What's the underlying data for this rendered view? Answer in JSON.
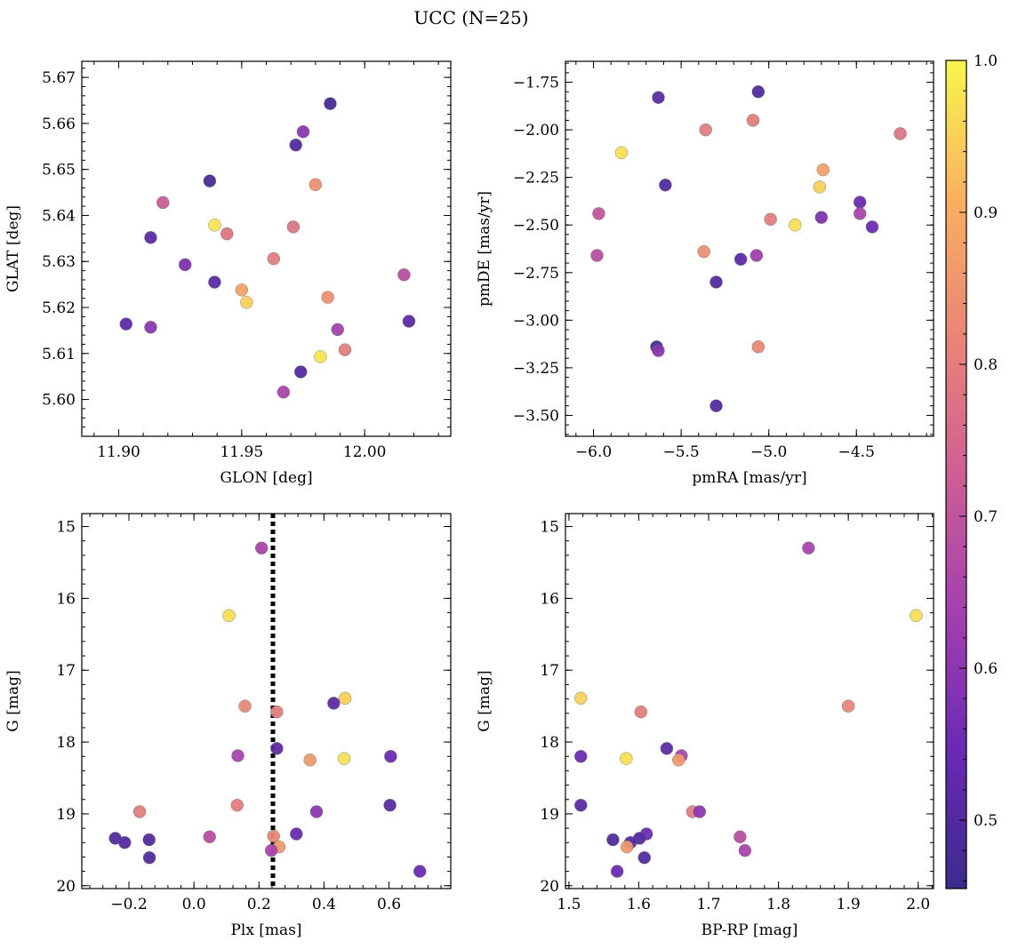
{
  "figure_title": "UCC (N=25)",
  "colorbar": {
    "range": [
      0.455,
      1.0
    ],
    "ticks": [
      0.5,
      0.6,
      0.7,
      0.8,
      0.9,
      1.0
    ],
    "tick_labels": [
      "0.5",
      "0.6",
      "0.7",
      "0.8",
      "0.9",
      "1.0"
    ],
    "colormap": "plasma",
    "colormap_stops": [
      "#3b2b8e",
      "#6a2ab5",
      "#a53fb0",
      "#cd5f94",
      "#e98577",
      "#fbb05f",
      "#f7f74c"
    ]
  },
  "chart_data": [
    {
      "id": "glon-glat",
      "type": "scatter",
      "xlabel": "GLON [deg]",
      "ylabel": "GLAT [deg]",
      "xlim": [
        11.885,
        12.035
      ],
      "ylim": [
        5.592,
        5.6735
      ],
      "xticks": [
        11.9,
        11.95,
        12.0
      ],
      "xtick_labels": [
        "11.90",
        "11.95",
        "12.00"
      ],
      "yticks": [
        5.6,
        5.61,
        5.62,
        5.63,
        5.64,
        5.65,
        5.66,
        5.67
      ],
      "ytick_labels": [
        "5.60",
        "5.61",
        "5.62",
        "5.63",
        "5.64",
        "5.65",
        "5.66",
        "5.67"
      ],
      "points": [
        {
          "x": 11.986,
          "y": 5.6643,
          "c": 0.48
        },
        {
          "x": 11.975,
          "y": 5.6582,
          "c": 0.6
        },
        {
          "x": 11.972,
          "y": 5.6553,
          "c": 0.5
        },
        {
          "x": 11.937,
          "y": 5.6475,
          "c": 0.48
        },
        {
          "x": 11.98,
          "y": 5.6467,
          "c": 0.84
        },
        {
          "x": 11.918,
          "y": 5.6428,
          "c": 0.72
        },
        {
          "x": 11.939,
          "y": 5.6379,
          "c": 0.98
        },
        {
          "x": 11.971,
          "y": 5.6375,
          "c": 0.78
        },
        {
          "x": 11.944,
          "y": 5.636,
          "c": 0.78
        },
        {
          "x": 11.913,
          "y": 5.6352,
          "c": 0.52
        },
        {
          "x": 11.963,
          "y": 5.6306,
          "c": 0.8
        },
        {
          "x": 11.927,
          "y": 5.6293,
          "c": 0.58
        },
        {
          "x": 12.016,
          "y": 5.6271,
          "c": 0.68
        },
        {
          "x": 11.939,
          "y": 5.6255,
          "c": 0.52
        },
        {
          "x": 11.95,
          "y": 5.6238,
          "c": 0.88
        },
        {
          "x": 11.985,
          "y": 5.6222,
          "c": 0.84
        },
        {
          "x": 11.952,
          "y": 5.6211,
          "c": 0.95
        },
        {
          "x": 12.018,
          "y": 5.617,
          "c": 0.52
        },
        {
          "x": 11.903,
          "y": 5.6164,
          "c": 0.52
        },
        {
          "x": 11.913,
          "y": 5.6157,
          "c": 0.6
        },
        {
          "x": 11.989,
          "y": 5.6152,
          "c": 0.64
        },
        {
          "x": 11.992,
          "y": 5.6108,
          "c": 0.8
        },
        {
          "x": 11.982,
          "y": 5.6093,
          "c": 0.98
        },
        {
          "x": 11.974,
          "y": 5.606,
          "c": 0.5
        },
        {
          "x": 11.967,
          "y": 5.6016,
          "c": 0.65
        }
      ]
    },
    {
      "id": "pm",
      "type": "scatter",
      "xlabel": "pmRA [mas/yr]",
      "ylabel": "pmDE [mas/yr]",
      "xlim": [
        -6.16,
        -4.06
      ],
      "ylim": [
        -3.61,
        -1.64
      ],
      "xticks": [
        -6.0,
        -5.5,
        -5.0,
        -4.5
      ],
      "xtick_labels": [
        "−6.0",
        "−5.5",
        "−5.0",
        "−4.5"
      ],
      "yticks": [
        -3.5,
        -3.25,
        -3.0,
        -2.75,
        -2.5,
        -2.25,
        -2.0,
        -1.75
      ],
      "ytick_labels": [
        "−3.50",
        "−3.25",
        "−3.00",
        "−2.75",
        "−2.50",
        "−2.25",
        "−2.00",
        "−1.75"
      ],
      "points": [
        {
          "x": -5.63,
          "y": -1.83,
          "c": 0.52
        },
        {
          "x": -5.06,
          "y": -1.8,
          "c": 0.5
        },
        {
          "x": -5.09,
          "y": -1.95,
          "c": 0.8
        },
        {
          "x": -5.36,
          "y": -2.0,
          "c": 0.8
        },
        {
          "x": -4.25,
          "y": -2.02,
          "c": 0.78
        },
        {
          "x": -5.84,
          "y": -2.12,
          "c": 0.97
        },
        {
          "x": -4.69,
          "y": -2.21,
          "c": 0.88
        },
        {
          "x": -5.59,
          "y": -2.29,
          "c": 0.5
        },
        {
          "x": -4.71,
          "y": -2.3,
          "c": 0.95
        },
        {
          "x": -4.48,
          "y": -2.38,
          "c": 0.55
        },
        {
          "x": -5.97,
          "y": -2.44,
          "c": 0.7
        },
        {
          "x": -4.48,
          "y": -2.44,
          "c": 0.65
        },
        {
          "x": -4.7,
          "y": -2.46,
          "c": 0.58
        },
        {
          "x": -4.99,
          "y": -2.47,
          "c": 0.8
        },
        {
          "x": -4.85,
          "y": -2.5,
          "c": 0.97
        },
        {
          "x": -4.41,
          "y": -2.51,
          "c": 0.55
        },
        {
          "x": -5.37,
          "y": -2.64,
          "c": 0.84
        },
        {
          "x": -5.98,
          "y": -2.66,
          "c": 0.68
        },
        {
          "x": -5.07,
          "y": -2.66,
          "c": 0.63
        },
        {
          "x": -5.16,
          "y": -2.68,
          "c": 0.52
        },
        {
          "x": -5.3,
          "y": -2.8,
          "c": 0.5
        },
        {
          "x": -5.64,
          "y": -3.14,
          "c": 0.48
        },
        {
          "x": -5.06,
          "y": -3.14,
          "c": 0.82
        },
        {
          "x": -5.63,
          "y": -3.16,
          "c": 0.6
        },
        {
          "x": -5.3,
          "y": -3.45,
          "c": 0.5
        }
      ]
    },
    {
      "id": "plx-g",
      "type": "scatter",
      "xlabel": "Plx [mas]",
      "ylabel": "G [mag]",
      "xlim": [
        -0.345,
        0.79
      ],
      "ylim": [
        20.04,
        14.82
      ],
      "xticks": [
        -0.2,
        0.0,
        0.2,
        0.4,
        0.6
      ],
      "xtick_labels": [
        "−0.2",
        "0.0",
        "0.2",
        "0.4",
        "0.6"
      ],
      "yticks": [
        15,
        16,
        17,
        18,
        19,
        20
      ],
      "ytick_labels": [
        "15",
        "16",
        "17",
        "18",
        "19",
        "20"
      ],
      "vline": {
        "x": 0.243,
        "style": "dotted"
      },
      "points": [
        {
          "x": 0.208,
          "y": 15.3,
          "c": 0.65
        },
        {
          "x": 0.108,
          "y": 16.24,
          "c": 0.97
        },
        {
          "x": 0.465,
          "y": 17.39,
          "c": 0.95
        },
        {
          "x": 0.43,
          "y": 17.46,
          "c": 0.52
        },
        {
          "x": 0.157,
          "y": 17.5,
          "c": 0.82
        },
        {
          "x": 0.255,
          "y": 17.58,
          "c": 0.8
        },
        {
          "x": 0.255,
          "y": 18.09,
          "c": 0.52
        },
        {
          "x": 0.135,
          "y": 18.19,
          "c": 0.65
        },
        {
          "x": 0.605,
          "y": 18.2,
          "c": 0.55
        },
        {
          "x": 0.462,
          "y": 18.23,
          "c": 0.97
        },
        {
          "x": 0.357,
          "y": 18.25,
          "c": 0.86
        },
        {
          "x": 0.133,
          "y": 18.88,
          "c": 0.8
        },
        {
          "x": 0.603,
          "y": 18.88,
          "c": 0.52
        },
        {
          "x": -0.167,
          "y": 18.97,
          "c": 0.8
        },
        {
          "x": 0.377,
          "y": 18.97,
          "c": 0.6
        },
        {
          "x": 0.315,
          "y": 19.28,
          "c": 0.55
        },
        {
          "x": 0.048,
          "y": 19.32,
          "c": 0.68
        },
        {
          "x": 0.245,
          "y": 19.31,
          "c": 0.82
        },
        {
          "x": -0.242,
          "y": 19.34,
          "c": 0.5
        },
        {
          "x": -0.138,
          "y": 19.36,
          "c": 0.5
        },
        {
          "x": -0.213,
          "y": 19.4,
          "c": 0.5
        },
        {
          "x": 0.262,
          "y": 19.46,
          "c": 0.86
        },
        {
          "x": 0.238,
          "y": 19.51,
          "c": 0.65
        },
        {
          "x": -0.137,
          "y": 19.61,
          "c": 0.5
        },
        {
          "x": 0.695,
          "y": 19.8,
          "c": 0.55
        }
      ]
    },
    {
      "id": "bprp-g",
      "type": "scatter",
      "xlabel": "BP-RP [mag]",
      "ylabel": "G [mag]",
      "xlim": [
        1.495,
        2.022
      ],
      "ylim": [
        20.04,
        14.82
      ],
      "xticks": [
        1.5,
        1.6,
        1.7,
        1.8,
        1.9,
        2.0
      ],
      "xtick_labels": [
        "1.5",
        "1.6",
        "1.7",
        "1.8",
        "1.9",
        "2.0"
      ],
      "yticks": [
        15,
        16,
        17,
        18,
        19,
        20
      ],
      "ytick_labels": [
        "15",
        "16",
        "17",
        "18",
        "19",
        "20"
      ],
      "points": [
        {
          "x": 1.843,
          "y": 15.3,
          "c": 0.65
        },
        {
          "x": 1.997,
          "y": 16.24,
          "c": 0.97
        },
        {
          "x": 1.517,
          "y": 17.39,
          "c": 0.95
        },
        {
          "x": 1.9,
          "y": 17.5,
          "c": 0.82
        },
        {
          "x": 1.603,
          "y": 17.58,
          "c": 0.8
        },
        {
          "x": 1.64,
          "y": 18.09,
          "c": 0.52
        },
        {
          "x": 1.661,
          "y": 18.19,
          "c": 0.65
        },
        {
          "x": 1.517,
          "y": 18.2,
          "c": 0.55
        },
        {
          "x": 1.582,
          "y": 18.23,
          "c": 0.97
        },
        {
          "x": 1.657,
          "y": 18.25,
          "c": 0.86
        },
        {
          "x": 1.517,
          "y": 18.88,
          "c": 0.52
        },
        {
          "x": 1.677,
          "y": 18.97,
          "c": 0.8
        },
        {
          "x": 1.687,
          "y": 18.97,
          "c": 0.6
        },
        {
          "x": 1.611,
          "y": 19.28,
          "c": 0.55
        },
        {
          "x": 1.745,
          "y": 19.32,
          "c": 0.68
        },
        {
          "x": 1.563,
          "y": 19.36,
          "c": 0.5
        },
        {
          "x": 1.601,
          "y": 19.34,
          "c": 0.5
        },
        {
          "x": 1.588,
          "y": 19.4,
          "c": 0.5
        },
        {
          "x": 1.583,
          "y": 19.46,
          "c": 0.86
        },
        {
          "x": 1.752,
          "y": 19.51,
          "c": 0.65
        },
        {
          "x": 1.608,
          "y": 19.61,
          "c": 0.5
        },
        {
          "x": 1.569,
          "y": 19.8,
          "c": 0.55
        }
      ]
    }
  ]
}
